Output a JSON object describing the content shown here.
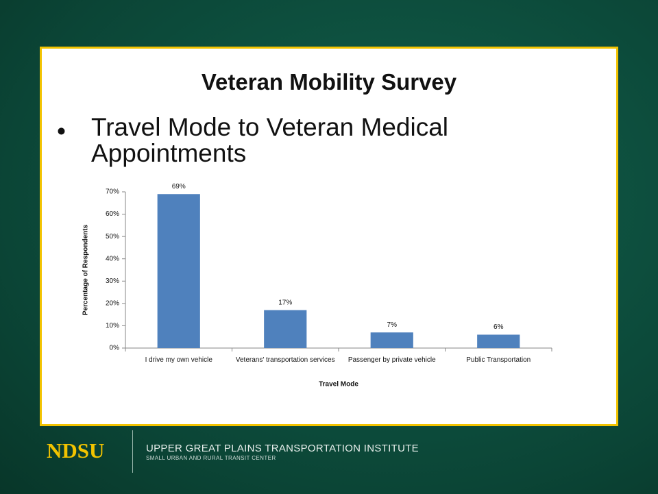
{
  "slide": {
    "title": "Veteran Mobility Survey",
    "bullet": "Travel Mode to Veteran Medical Appointments",
    "footer": {
      "logo": "NDSU",
      "institute": "UPPER GREAT PLAINS TRANSPORTATION INSTITUTE",
      "center": "SMALL URBAN AND RURAL TRANSIT CENTER"
    }
  },
  "chart_data": {
    "type": "bar",
    "categories": [
      "I drive my own vehicle",
      "Veterans' transportation services",
      "Passenger by private vehicle",
      "Public Transportation"
    ],
    "values": [
      69,
      17,
      7,
      6
    ],
    "value_labels": [
      "69%",
      "17%",
      "7%",
      "6%"
    ],
    "color": "#4f81bd",
    "xlabel": "Travel Mode",
    "ylabel": "Percentage of Respondents",
    "ylim": [
      0,
      70
    ],
    "yticks": [
      {
        "value": 0,
        "label": "0%"
      },
      {
        "value": 10,
        "label": "10%"
      },
      {
        "value": 20,
        "label": "20%"
      },
      {
        "value": 30,
        "label": "30%"
      },
      {
        "value": 40,
        "label": "40%"
      },
      {
        "value": 50,
        "label": "50%"
      },
      {
        "value": 60,
        "label": "60%"
      },
      {
        "value": 70,
        "label": "70%"
      }
    ],
    "grid": false
  }
}
